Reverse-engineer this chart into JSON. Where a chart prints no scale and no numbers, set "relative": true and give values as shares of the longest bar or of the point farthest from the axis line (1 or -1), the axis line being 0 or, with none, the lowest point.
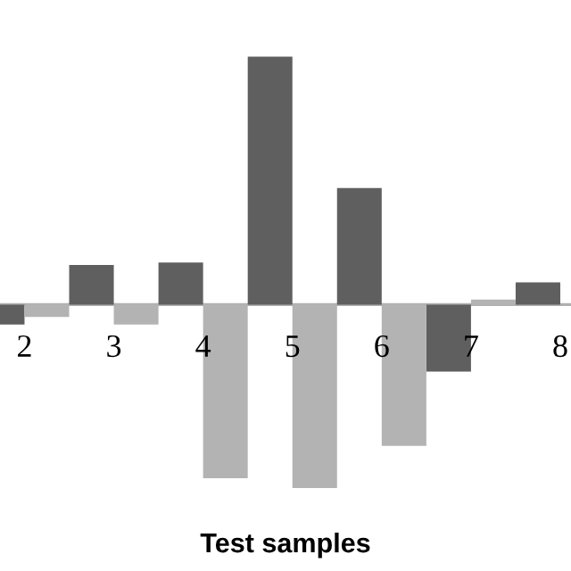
{
  "chart_data": {
    "type": "bar",
    "relative": true,
    "xlabel": "Test samples",
    "categories": [
      "2",
      "3",
      "4",
      "5",
      "6",
      "7",
      "8"
    ],
    "series": [
      {
        "color": "#5f5f5f",
        "values": [
          -0.08,
          0.16,
          0.17,
          1.0,
          0.47,
          -0.27,
          0.09
        ]
      },
      {
        "color": "#b3b3b3",
        "values": [
          -0.05,
          -0.08,
          -0.7,
          -0.74,
          -0.57,
          0.02,
          null
        ]
      }
    ],
    "legend": false
  }
}
